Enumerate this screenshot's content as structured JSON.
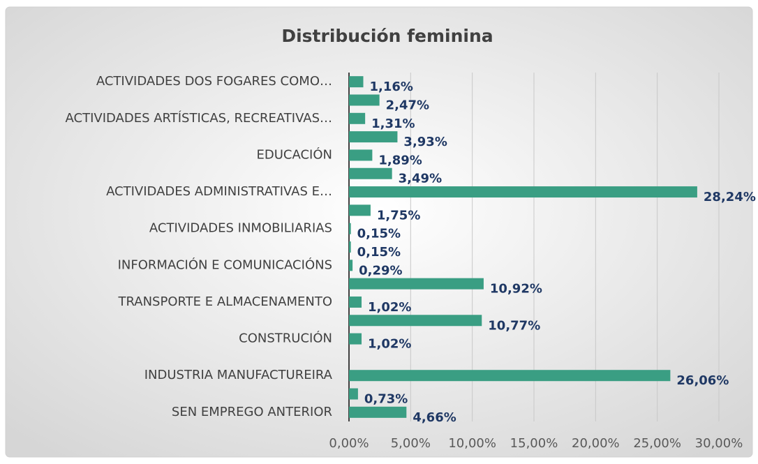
{
  "chart_data": {
    "type": "bar",
    "orientation": "horizontal",
    "title": "Distribución feminina",
    "categories": [
      "ACTIVIDADES DOS FOGARES COMO…",
      null,
      "ACTIVIDADES ARTÍSTICAS, RECREATIVAS…",
      null,
      "EDUCACIÓN",
      null,
      "ACTIVIDADES ADMINISTRATIVAS E…",
      null,
      "ACTIVIDADES INMOBILIARIAS",
      null,
      "INFORMACIÓN E COMUNICACIÓNS",
      null,
      "TRANSPORTE E ALMACENAMENTO",
      null,
      "CONSTRUCIÓN",
      null,
      "INDUSTRIA MANUFACTUREIRA",
      null,
      "SEN EMPREGO ANTERIOR"
    ],
    "values": [
      1.16,
      2.47,
      1.31,
      3.93,
      1.89,
      3.49,
      28.24,
      1.75,
      0.15,
      0.15,
      0.29,
      10.92,
      1.02,
      10.77,
      1.02,
      null,
      26.06,
      0.73,
      4.66
    ],
    "value_labels": [
      "1,16%",
      "2,47%",
      "1,31%",
      "3,93%",
      "1,89%",
      "3,49%",
      "28,24%",
      "1,75%",
      "0,15%",
      "0,15%",
      "0,29%",
      "10,92%",
      "1,02%",
      "10,77%",
      "1,02%",
      null,
      "26,06%",
      "0,73%",
      "4,66%"
    ],
    "color": "#3a9e83",
    "xlim": [
      0,
      30
    ],
    "xticks": [
      {
        "value": 0,
        "label": "0,00%"
      },
      {
        "value": 5,
        "label": "5,00%"
      },
      {
        "value": 10,
        "label": "10,00%"
      },
      {
        "value": 15,
        "label": "15,00%"
      },
      {
        "value": 20,
        "label": "20,00%"
      },
      {
        "value": 25,
        "label": "25,00%"
      },
      {
        "value": 30,
        "label": "30,00%"
      }
    ],
    "grid": true
  }
}
